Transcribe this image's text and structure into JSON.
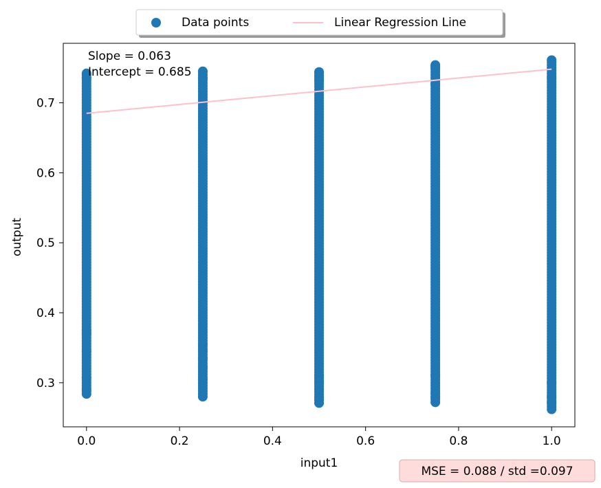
{
  "chart_data": {
    "type": "scatter",
    "xlabel": "input1",
    "ylabel": "output",
    "xlim": [
      -0.05,
      1.05
    ],
    "ylim": [
      0.237,
      0.785
    ],
    "xticks": [
      0.0,
      0.2,
      0.4,
      0.6,
      0.8,
      1.0
    ],
    "xtick_labels": [
      "0.0",
      "0.2",
      "0.4",
      "0.6",
      "0.8",
      "1.0"
    ],
    "yticks": [
      0.3,
      0.4,
      0.5,
      0.6,
      0.7
    ],
    "ytick_labels": [
      "0.3",
      "0.4",
      "0.5",
      "0.6",
      "0.7"
    ],
    "grid": false,
    "legend": {
      "placement": "top-center-outside",
      "entries": [
        "Data points",
        "Linear Regression Line"
      ]
    },
    "series": [
      {
        "name": "Data points",
        "kind": "scatter",
        "color": "#1f77b4",
        "columns": [
          {
            "x": 0.0,
            "y_min": 0.284,
            "y_max": 0.742,
            "outliers": [
              0.284,
              0.29,
              0.307,
              0.316,
              0.34,
              0.345,
              0.352,
              0.36,
              0.37,
              0.375,
              0.384,
              0.735,
              0.742
            ]
          },
          {
            "x": 0.25,
            "y_min": 0.28,
            "y_max": 0.745,
            "outliers": [
              0.28,
              0.284,
              0.292,
              0.305,
              0.312,
              0.322,
              0.335,
              0.345,
              0.355,
              0.735,
              0.745
            ]
          },
          {
            "x": 0.5,
            "y_min": 0.271,
            "y_max": 0.744,
            "outliers": [
              0.271,
              0.277,
              0.283,
              0.29,
              0.3,
              0.31,
              0.732,
              0.738,
              0.744
            ]
          },
          {
            "x": 0.75,
            "y_min": 0.272,
            "y_max": 0.754,
            "outliers": [
              0.272,
              0.279,
              0.285,
              0.292,
              0.3,
              0.31,
              0.72,
              0.727,
              0.75,
              0.754
            ]
          },
          {
            "x": 1.0,
            "y_min": 0.262,
            "y_max": 0.761,
            "outliers": [
              0.262,
              0.272,
              0.28,
              0.29,
              0.3,
              0.71,
              0.722,
              0.736,
              0.761
            ]
          }
        ]
      },
      {
        "name": "Linear Regression Line",
        "kind": "line",
        "color": "#ffc0cb",
        "x": [
          0.0,
          1.0
        ],
        "y": [
          0.685,
          0.748
        ]
      }
    ],
    "annotations": {
      "slope_text": "Slope = 0.063",
      "intercept_text": "Intercept = 0.685",
      "mse_text": "MSE = 0.088 / std =0.097",
      "mse_box_face": "#ffdcdc",
      "mse_box_edge": "#d9a8a8"
    }
  }
}
